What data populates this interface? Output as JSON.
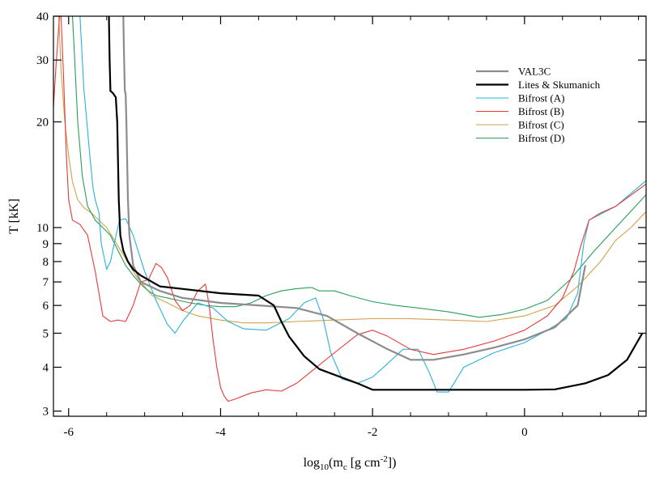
{
  "chart_data": {
    "type": "line",
    "xlabel": "log10(mc [g cm-2])",
    "ylabel": "T [kK]",
    "xlim": [
      -6.2,
      1.6
    ],
    "ylim": [
      2.9,
      40
    ],
    "y_scale": "log",
    "grid": false,
    "legend_position": "top-right",
    "x_ticks": [
      -6,
      -4,
      -2,
      0
    ],
    "x_tick_labels": [
      "-6",
      "-4",
      "-2",
      "0"
    ],
    "y_ticks": [
      3,
      4,
      5,
      6,
      7,
      8,
      9,
      10,
      20,
      30,
      40
    ],
    "y_tick_labels": [
      "3",
      "4",
      "5",
      "6",
      "7",
      "8",
      "9",
      "10",
      "20",
      "30",
      "40"
    ],
    "series": [
      {
        "name": "VAL3C",
        "color": "#8c8c8c",
        "x": [
          -5.28,
          -5.27,
          -5.26,
          -5.25,
          -5.24,
          -5.22,
          -5.2,
          -5.15,
          -5.05,
          -4.8,
          -4.5,
          -4.0,
          -3.5,
          -3.0,
          -2.6,
          -2.2,
          -1.8,
          -1.5,
          -1.2,
          -0.8,
          -0.4,
          0.0,
          0.4,
          0.7,
          0.8
        ],
        "y": [
          40,
          30,
          24.5,
          24,
          20,
          12,
          9.5,
          7.8,
          7.0,
          6.6,
          6.3,
          6.1,
          6.0,
          5.9,
          5.6,
          5.0,
          4.5,
          4.2,
          4.2,
          4.35,
          4.55,
          4.8,
          5.2,
          6.0,
          7.8
        ]
      },
      {
        "name": "Lites & Skumanich",
        "color": "#000000",
        "x": [
          -5.47,
          -5.46,
          -5.45,
          -5.42,
          -5.38,
          -5.36,
          -5.34,
          -5.32,
          -5.28,
          -5.22,
          -5.15,
          -5.05,
          -4.8,
          -4.4,
          -4.0,
          -3.5,
          -3.3,
          -3.2,
          -3.1,
          -2.9,
          -2.7,
          -2.2,
          -2.0,
          -1.0,
          0.0,
          0.4,
          0.8,
          1.1,
          1.35,
          1.55
        ],
        "y": [
          40,
          30,
          24.5,
          24.2,
          23.5,
          20,
          12,
          9.5,
          8.6,
          8.0,
          7.6,
          7.3,
          6.8,
          6.65,
          6.5,
          6.4,
          6.0,
          5.4,
          4.9,
          4.3,
          3.95,
          3.6,
          3.45,
          3.45,
          3.45,
          3.46,
          3.6,
          3.8,
          4.2,
          5.0
        ]
      },
      {
        "name": "Bifrost (A)",
        "color": "#27b4d9",
        "x": [
          -5.85,
          -5.8,
          -5.72,
          -5.68,
          -5.65,
          -5.6,
          -5.57,
          -5.5,
          -5.45,
          -5.4,
          -5.33,
          -5.25,
          -5.15,
          -5.0,
          -4.85,
          -4.7,
          -4.6,
          -4.5,
          -4.3,
          -4.1,
          -3.9,
          -3.7,
          -3.4,
          -3.1,
          -2.9,
          -2.75,
          -2.65,
          -2.55,
          -2.4,
          -2.2,
          -2.0,
          -1.8,
          -1.6,
          -1.4,
          -1.25,
          -1.15,
          -1.0,
          -0.8,
          -0.4,
          0.0,
          0.3,
          0.55,
          0.7,
          0.78,
          0.85,
          1.2,
          1.6
        ],
        "y": [
          40,
          25,
          16,
          13,
          12,
          11,
          9,
          7.6,
          8,
          9,
          10.5,
          10.6,
          9.5,
          7.5,
          6.2,
          5.3,
          5.0,
          5.4,
          6.1,
          5.9,
          5.4,
          5.15,
          5.1,
          5.5,
          6.1,
          6.3,
          5.5,
          4.4,
          3.7,
          3.6,
          3.75,
          4.1,
          4.5,
          4.5,
          3.85,
          3.4,
          3.4,
          4.0,
          4.4,
          4.7,
          5.1,
          5.5,
          6.5,
          9.0,
          10.5,
          11.5,
          13.6
        ]
      },
      {
        "name": "Bifrost (B)",
        "color": "#e8393a",
        "x": [
          -6.2,
          -6.17,
          -6.12,
          -6.1,
          -6.07,
          -6.03,
          -6.0,
          -5.95,
          -5.85,
          -5.75,
          -5.65,
          -5.55,
          -5.45,
          -5.35,
          -5.25,
          -5.15,
          -5.05,
          -4.95,
          -4.85,
          -4.78,
          -4.7,
          -4.6,
          -4.5,
          -4.4,
          -4.3,
          -4.2,
          -4.15,
          -4.1,
          -4.05,
          -4.0,
          -3.95,
          -3.9,
          -3.8,
          -3.6,
          -3.4,
          -3.2,
          -3.0,
          -2.8,
          -2.5,
          -2.2,
          -2.0,
          -1.8,
          -1.5,
          -1.2,
          -0.8,
          -0.4,
          0.0,
          0.3,
          0.5,
          0.65,
          0.75,
          0.85,
          1.0,
          1.2,
          1.6
        ],
        "y": [
          22,
          28,
          40,
          40,
          28,
          16,
          12,
          10.5,
          10.2,
          9.5,
          7.5,
          5.6,
          5.4,
          5.45,
          5.4,
          6.0,
          7.0,
          7.1,
          7.9,
          7.7,
          7.2,
          6.2,
          5.8,
          6.0,
          6.6,
          6.9,
          6.0,
          4.8,
          4.0,
          3.5,
          3.3,
          3.2,
          3.25,
          3.38,
          3.45,
          3.42,
          3.6,
          3.9,
          4.4,
          4.95,
          5.1,
          4.9,
          4.5,
          4.35,
          4.5,
          4.75,
          5.1,
          5.6,
          6.3,
          7.5,
          9.0,
          10.5,
          11.0,
          11.5,
          13.3
        ]
      },
      {
        "name": "Bifrost (C)",
        "color": "#d2a24a",
        "x": [
          -6.13,
          -6.1,
          -6.05,
          -6.0,
          -5.95,
          -5.88,
          -5.8,
          -5.7,
          -5.5,
          -5.3,
          -5.1,
          -4.9,
          -4.7,
          -4.5,
          -4.3,
          -4.0,
          -3.7,
          -3.4,
          -3.0,
          -2.5,
          -2.0,
          -1.5,
          -1.0,
          -0.5,
          0.0,
          0.4,
          0.7,
          1.0,
          1.2,
          1.4,
          1.6
        ],
        "y": [
          40,
          28,
          20,
          16,
          13.5,
          12,
          11.4,
          11.0,
          10.0,
          8.5,
          7.2,
          6.4,
          6.1,
          5.8,
          5.6,
          5.45,
          5.35,
          5.35,
          5.4,
          5.45,
          5.5,
          5.5,
          5.45,
          5.4,
          5.6,
          6.0,
          6.8,
          8.0,
          9.2,
          10.0,
          11.1
        ]
      },
      {
        "name": "Bifrost (D)",
        "color": "#2a9d57",
        "x": [
          -5.95,
          -5.92,
          -5.88,
          -5.82,
          -5.75,
          -5.65,
          -5.55,
          -5.45,
          -5.35,
          -5.25,
          -5.15,
          -5.05,
          -4.95,
          -4.85,
          -4.7,
          -4.55,
          -4.4,
          -4.2,
          -4.0,
          -3.8,
          -3.6,
          -3.4,
          -3.2,
          -3.0,
          -2.8,
          -2.7,
          -2.5,
          -2.3,
          -2.0,
          -1.7,
          -1.4,
          -1.0,
          -0.6,
          -0.3,
          0.0,
          0.3,
          0.6,
          0.9,
          1.2,
          1.6
        ],
        "y": [
          40,
          30,
          20,
          14,
          11.5,
          10.5,
          10.0,
          9.5,
          8.6,
          7.8,
          7.3,
          6.9,
          6.6,
          6.4,
          6.3,
          6.2,
          6.1,
          6.0,
          5.95,
          5.95,
          6.1,
          6.4,
          6.6,
          6.7,
          6.75,
          6.6,
          6.6,
          6.4,
          6.15,
          6.0,
          5.9,
          5.75,
          5.55,
          5.65,
          5.85,
          6.2,
          7.1,
          8.5,
          10.0,
          12.4
        ]
      }
    ]
  }
}
